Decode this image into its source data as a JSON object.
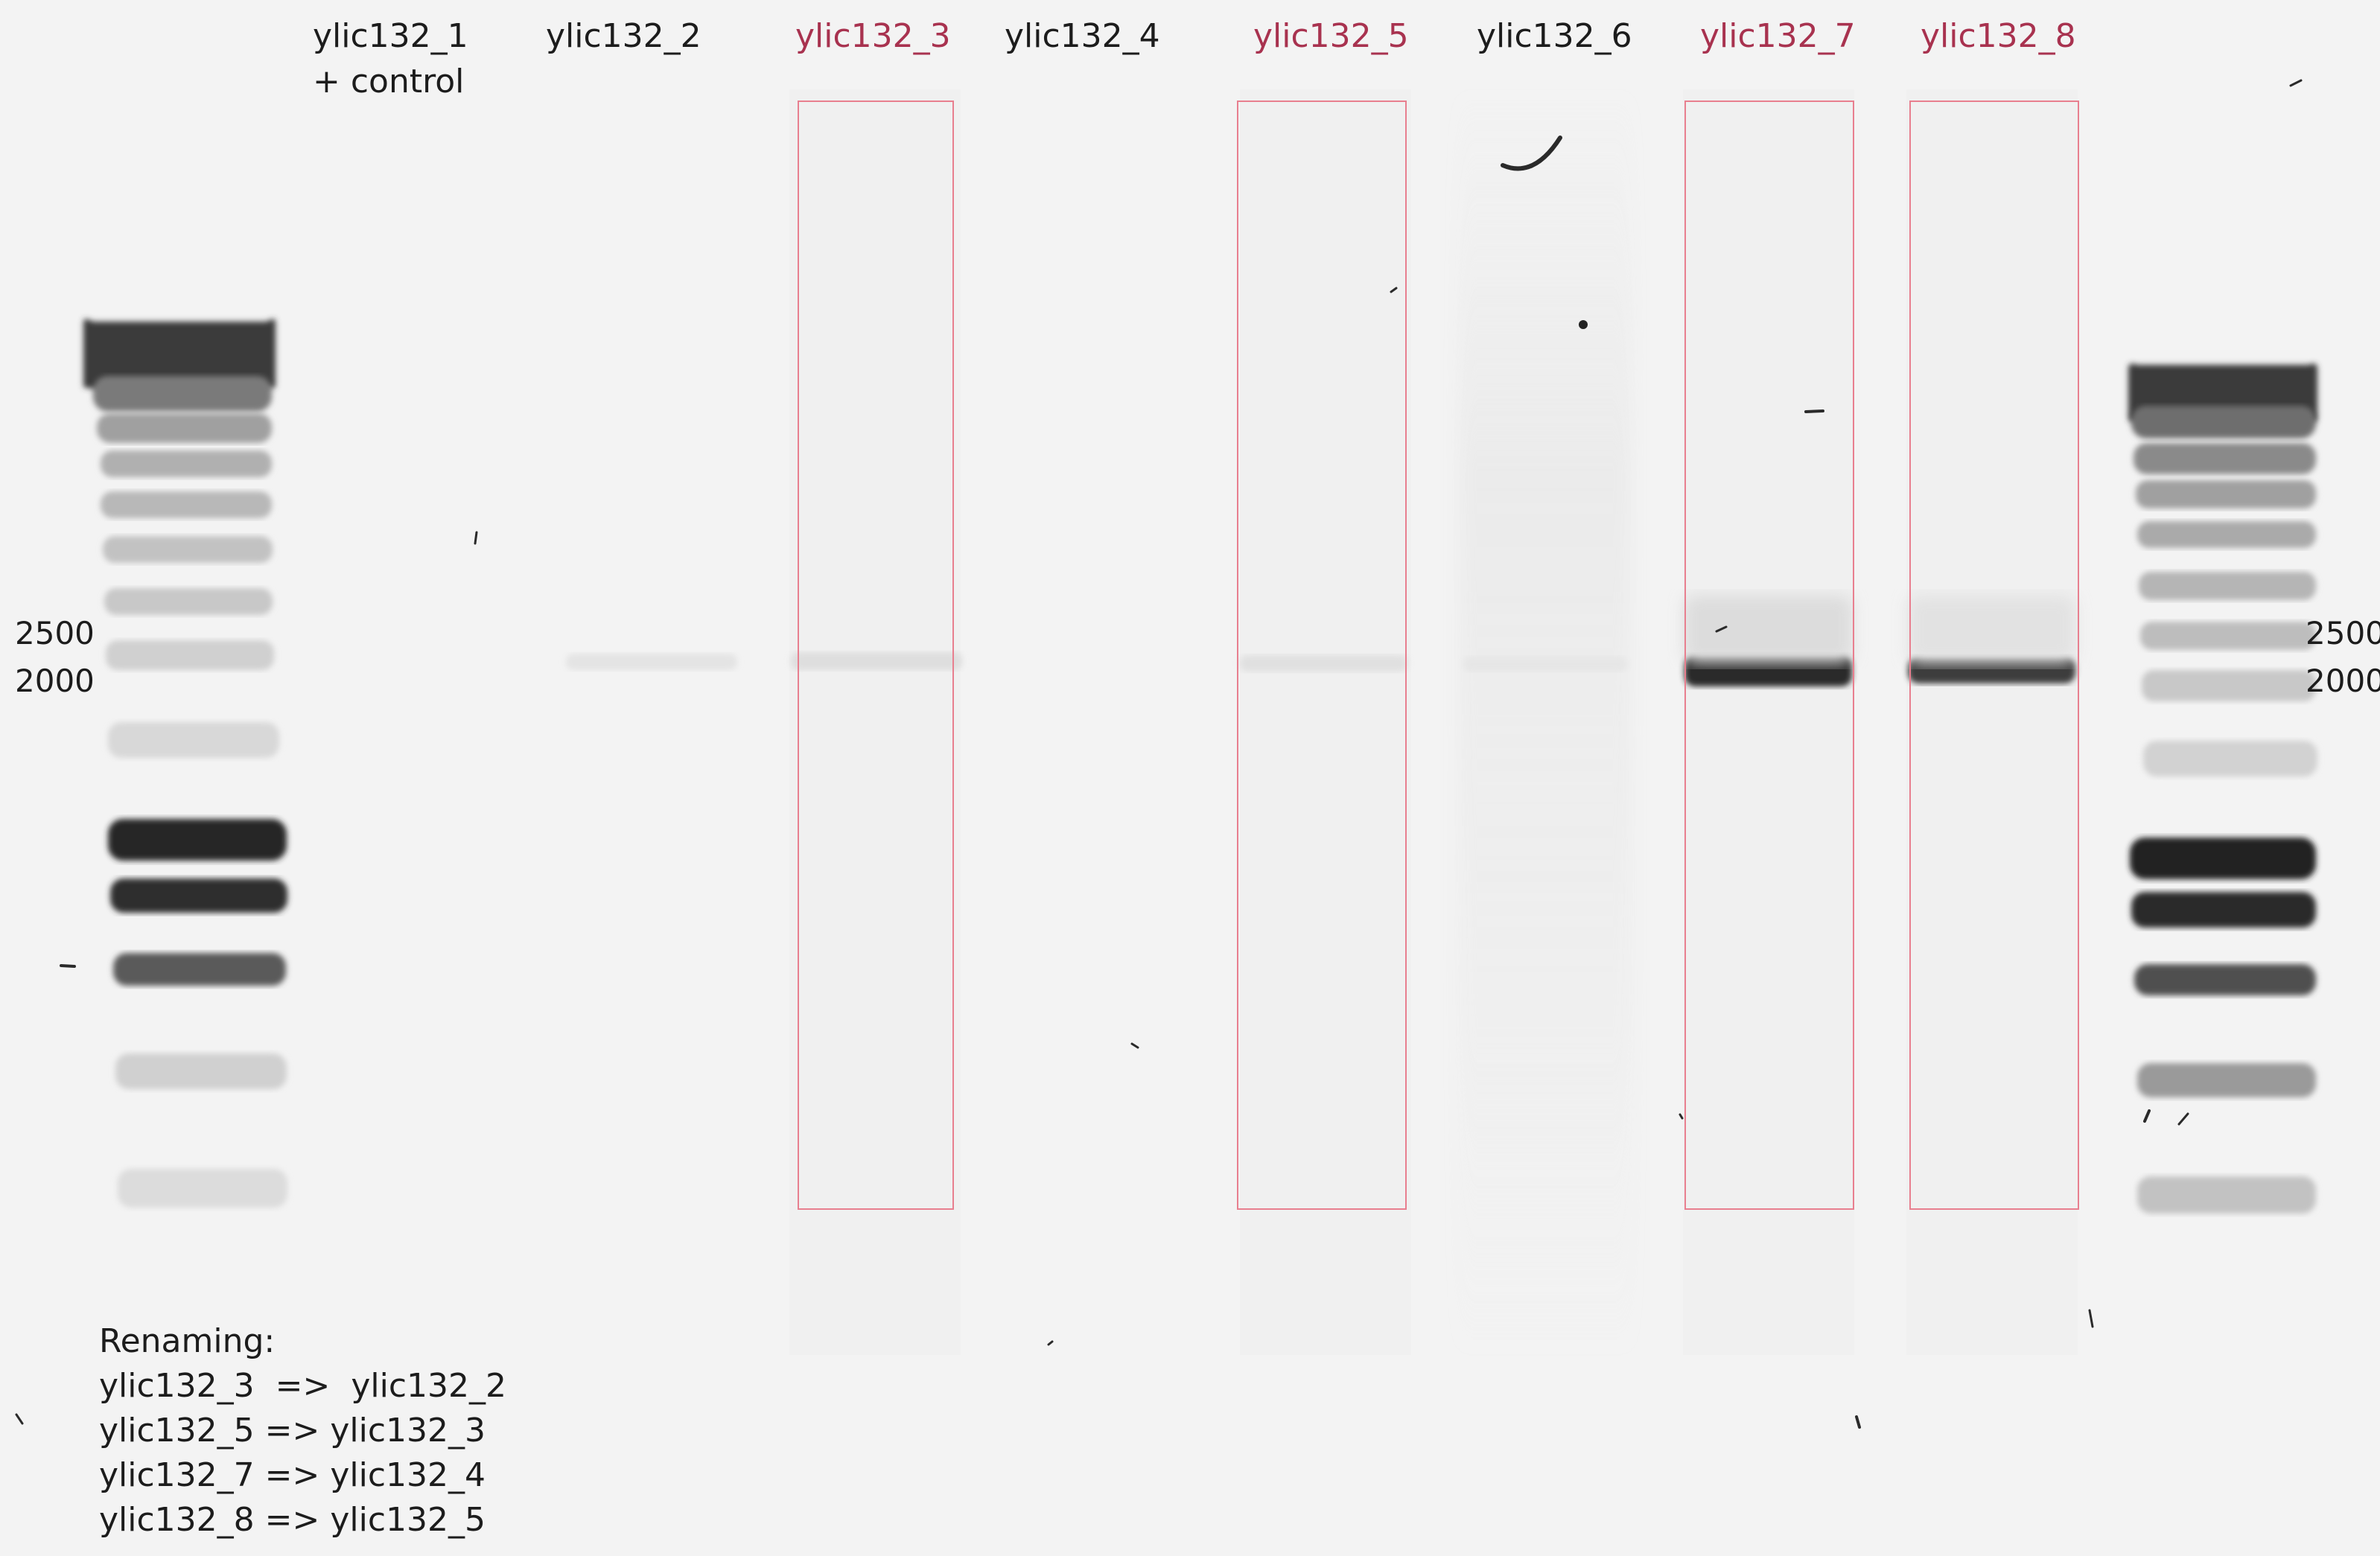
{
  "lanes": [
    {
      "label": "ylic132_1",
      "highlighted": false
    },
    {
      "label": "ylic132_2",
      "highlighted": false
    },
    {
      "label": "ylic132_3",
      "highlighted": true
    },
    {
      "label": "ylic132_4",
      "highlighted": false
    },
    {
      "label": "ylic132_5",
      "highlighted": true
    },
    {
      "label": "ylic132_6",
      "highlighted": false
    },
    {
      "label": "ylic132_7",
      "highlighted": true
    },
    {
      "label": "ylic132_8",
      "highlighted": true
    }
  ],
  "control_label": "+ control",
  "markers": {
    "left": [
      "2500",
      "2000"
    ],
    "right": [
      "2500",
      "2000"
    ]
  },
  "renaming": {
    "title": "Renaming:",
    "lines": [
      "ylic132_3  =>  ylic132_2",
      "ylic132_5 => ylic132_3",
      "ylic132_7 => ylic132_4",
      "ylic132_8 => ylic132_5"
    ]
  },
  "colors": {
    "background": "#f3f3f3",
    "highlight_text": "#a8324f",
    "highlight_box": "#e87f8f",
    "band": "#2a2a2a"
  }
}
